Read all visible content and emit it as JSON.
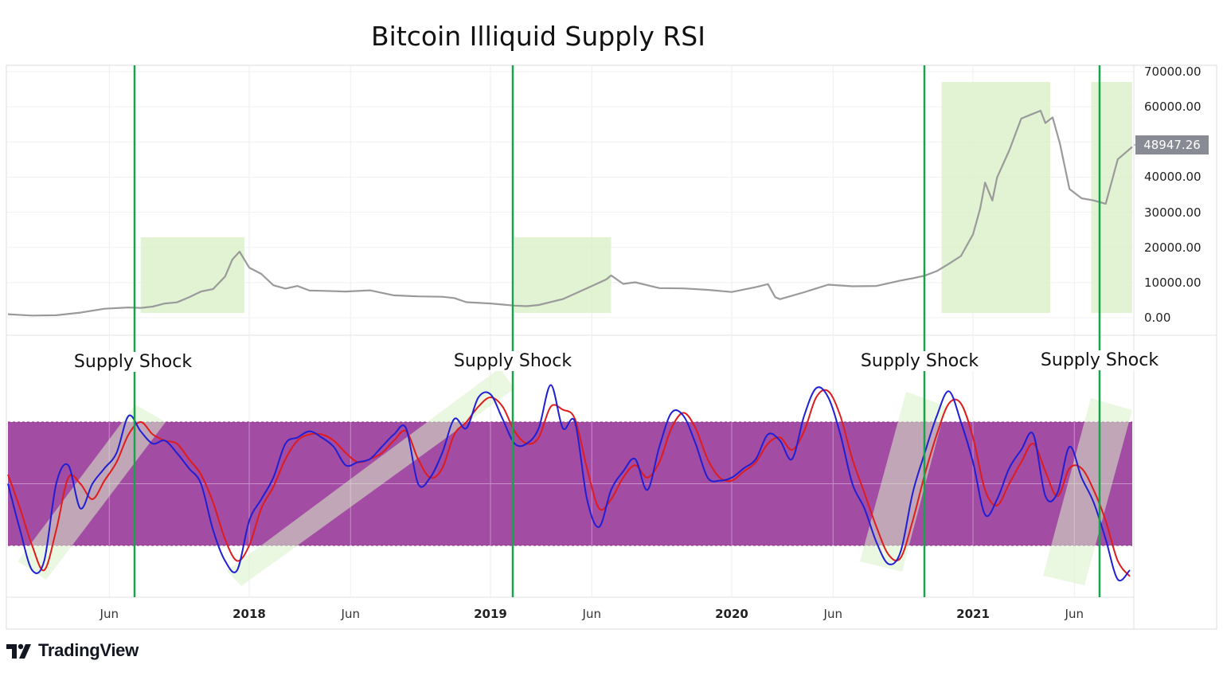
{
  "title": "Bitcoin Illiquid Supply RSI",
  "current_price_label": "48947.26",
  "brand": "TradingView",
  "annotations": [
    "Supply Shock",
    "Supply Shock",
    "Supply Shock",
    "Supply Shock"
  ],
  "colors": {
    "price_line": "#9a9a9a",
    "rsi_fast": "#1f1fd6",
    "rsi_slow": "#e01b1b",
    "band_fill": "#a24ca3",
    "highlight": "#d9f0c8",
    "shock_line": "#16a34a",
    "price_tag": "#888b94"
  },
  "chart_data": [
    {
      "type": "line",
      "name": "price",
      "y_tick_labels": [
        "70000.00",
        "60000.00",
        "50000.00",
        "40000.00",
        "30000.00",
        "20000.00",
        "10000.00",
        "0.00"
      ],
      "y_tick_values": [
        70000,
        60000,
        50000,
        40000,
        30000,
        20000,
        10000,
        0
      ],
      "ylim": [
        0,
        70000
      ],
      "x_tick_labels": [
        "Jun",
        "2018",
        "Jun",
        "2019",
        "Jun",
        "2020",
        "Jun",
        "2021",
        "Jun"
      ],
      "x_tick_values": [
        2017.42,
        2018.0,
        2018.42,
        2019.0,
        2019.42,
        2020.0,
        2020.42,
        2021.0,
        2021.42
      ],
      "xlim": [
        2017.0,
        2021.66
      ],
      "series": [
        {
          "x": [
            2017.0,
            2017.1,
            2017.2,
            2017.3,
            2017.4,
            2017.5,
            2017.55,
            2017.6,
            2017.65,
            2017.7,
            2017.75,
            2017.8,
            2017.85,
            2017.9,
            2017.93,
            2017.96,
            2018.0,
            2018.05,
            2018.1,
            2018.15,
            2018.2,
            2018.25,
            2018.3,
            2018.4,
            2018.5,
            2018.6,
            2018.7,
            2018.8,
            2018.85,
            2018.9,
            2019.0,
            2019.1,
            2019.15,
            2019.2,
            2019.3,
            2019.4,
            2019.48,
            2019.5,
            2019.55,
            2019.6,
            2019.7,
            2019.8,
            2019.9,
            2020.0,
            2020.1,
            2020.15,
            2020.18,
            2020.2,
            2020.3,
            2020.4,
            2020.5,
            2020.6,
            2020.7,
            2020.75,
            2020.8,
            2020.85,
            2020.9,
            2020.95,
            2021.0,
            2021.03,
            2021.05,
            2021.08,
            2021.1,
            2021.15,
            2021.2,
            2021.25,
            2021.28,
            2021.3,
            2021.33,
            2021.36,
            2021.4,
            2021.45,
            2021.5,
            2021.55,
            2021.6,
            2021.66
          ],
          "y": [
            1000,
            1000,
            1100,
            1500,
            2200,
            2500,
            2700,
            3500,
            4500,
            4500,
            5500,
            7000,
            8000,
            12000,
            17000,
            19000,
            14000,
            12000,
            9000,
            8500,
            9500,
            8000,
            7500,
            7000,
            7500,
            6500,
            6500,
            6300,
            5500,
            4000,
            3700,
            3500,
            3700,
            4000,
            5300,
            8000,
            10500,
            12000,
            10000,
            10500,
            8500,
            8000,
            7500,
            7200,
            9000,
            10000,
            6000,
            5000,
            6800,
            9200,
            9200,
            9500,
            10800,
            11000,
            11500,
            13000,
            15500,
            18000,
            24000,
            31000,
            38000,
            33000,
            40000,
            48000,
            57000,
            58000,
            58500,
            55000,
            57000,
            50000,
            37000,
            34000,
            33000,
            32000,
            45000,
            48947
          ]
        }
      ],
      "highlight_ranges": [
        [
          2017.55,
          2017.98
        ],
        [
          2019.1,
          2019.5
        ],
        [
          2020.87,
          2021.32
        ],
        [
          2021.49,
          2021.66
        ]
      ]
    },
    {
      "type": "line",
      "name": "rsi",
      "ylim": [
        0,
        100
      ],
      "band": [
        30,
        70
      ],
      "gridlines": [
        50
      ],
      "xlim": [
        2017.0,
        2021.66
      ],
      "series": [
        {
          "x": [
            2017.0,
            2017.05,
            2017.1,
            2017.15,
            2017.2,
            2017.25,
            2017.3,
            2017.35,
            2017.4,
            2017.45,
            2017.5,
            2017.55,
            2017.6,
            2017.65,
            2017.7,
            2017.75,
            2017.8,
            2017.85,
            2017.9,
            2017.95,
            2018.0,
            2018.05,
            2018.1,
            2018.15,
            2018.2,
            2018.25,
            2018.3,
            2018.35,
            2018.4,
            2018.45,
            2018.5,
            2018.55,
            2018.6,
            2018.65,
            2018.7,
            2018.75,
            2018.8,
            2018.85,
            2018.9,
            2018.95,
            2019.0,
            2019.05,
            2019.1,
            2019.15,
            2019.2,
            2019.25,
            2019.3,
            2019.35,
            2019.4,
            2019.45,
            2019.5,
            2019.55,
            2019.6,
            2019.65,
            2019.7,
            2019.75,
            2019.8,
            2019.85,
            2019.9,
            2019.95,
            2020.0,
            2020.05,
            2020.1,
            2020.15,
            2020.2,
            2020.25,
            2020.3,
            2020.35,
            2020.4,
            2020.45,
            2020.5,
            2020.55,
            2020.6,
            2020.65,
            2020.7,
            2020.75,
            2020.8,
            2020.85,
            2020.9,
            2020.95,
            2021.0,
            2021.05,
            2021.1,
            2021.15,
            2021.2,
            2021.25,
            2021.3,
            2021.35,
            2021.4,
            2021.45,
            2021.5,
            2021.55,
            2021.6,
            2021.65
          ],
          "values": [
            50,
            35,
            22,
            25,
            50,
            56,
            42,
            50,
            55,
            60,
            72,
            67,
            63,
            64,
            60,
            55,
            50,
            35,
            25,
            22,
            38,
            45,
            52,
            63,
            65,
            67,
            65,
            62,
            56,
            57,
            58,
            62,
            66,
            68,
            50,
            52,
            60,
            71,
            68,
            78,
            79,
            71,
            63,
            63,
            68,
            82,
            68,
            70,
            45,
            36,
            48,
            54,
            58,
            48,
            62,
            73,
            72,
            63,
            52,
            51,
            52,
            55,
            58,
            66,
            64,
            58,
            72,
            81,
            78,
            66,
            50,
            42,
            31,
            24,
            28,
            47,
            60,
            72,
            80,
            70,
            57,
            40,
            45,
            55,
            61,
            66,
            46,
            47,
            62,
            52,
            44,
            32,
            19,
            22
          ],
          "name": ""
        },
        {
          "x": [
            2017.0,
            2017.05,
            2017.1,
            2017.15,
            2017.2,
            2017.25,
            2017.3,
            2017.35,
            2017.4,
            2017.45,
            2017.5,
            2017.55,
            2017.6,
            2017.65,
            2017.7,
            2017.75,
            2017.8,
            2017.85,
            2017.9,
            2017.95,
            2018.0,
            2018.05,
            2018.1,
            2018.15,
            2018.2,
            2018.25,
            2018.3,
            2018.35,
            2018.4,
            2018.45,
            2018.5,
            2018.55,
            2018.6,
            2018.65,
            2018.7,
            2018.75,
            2018.8,
            2018.85,
            2018.9,
            2018.95,
            2019.0,
            2019.05,
            2019.1,
            2019.15,
            2019.2,
            2019.25,
            2019.3,
            2019.35,
            2019.4,
            2019.45,
            2019.5,
            2019.55,
            2019.6,
            2019.65,
            2019.7,
            2019.75,
            2019.8,
            2019.85,
            2019.9,
            2019.95,
            2020.0,
            2020.05,
            2020.1,
            2020.15,
            2020.2,
            2020.25,
            2020.3,
            2020.35,
            2020.4,
            2020.45,
            2020.5,
            2020.55,
            2020.6,
            2020.65,
            2020.7,
            2020.75,
            2020.8,
            2020.85,
            2020.9,
            2020.95,
            2021.0,
            2021.05,
            2021.1,
            2021.15,
            2021.2,
            2021.25,
            2021.3,
            2021.35,
            2021.4,
            2021.45,
            2021.5,
            2021.55,
            2021.6,
            2021.65
          ],
          "values": [
            53,
            42,
            30,
            22,
            35,
            52,
            50,
            45,
            51,
            57,
            66,
            70,
            66,
            64,
            63,
            58,
            53,
            44,
            32,
            25,
            30,
            42,
            49,
            58,
            64,
            66,
            66,
            64,
            60,
            57,
            58,
            60,
            64,
            67,
            58,
            52,
            55,
            66,
            70,
            75,
            78,
            75,
            67,
            63,
            65,
            75,
            74,
            71,
            55,
            42,
            45,
            52,
            56,
            52,
            57,
            68,
            73,
            68,
            58,
            52,
            51,
            54,
            57,
            63,
            65,
            61,
            67,
            78,
            80,
            72,
            58,
            47,
            36,
            27,
            26,
            38,
            53,
            66,
            76,
            76,
            65,
            48,
            43,
            50,
            57,
            63,
            54,
            46,
            55,
            55,
            48,
            38,
            25,
            20
          ],
          "name": ""
        }
      ]
    }
  ],
  "x_axis_labels": [
    "Jun",
    "2018",
    "Jun",
    "2019",
    "Jun",
    "2020",
    "Jun",
    "2021",
    "Jun"
  ]
}
